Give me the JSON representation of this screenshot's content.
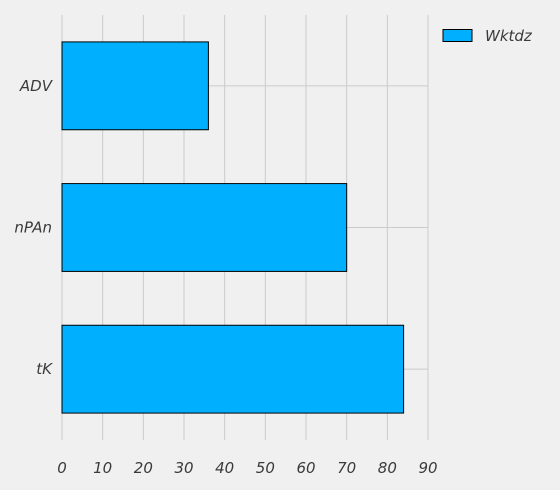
{
  "chart_data": {
    "type": "bar",
    "orientation": "horizontal",
    "categories": [
      "ADV",
      "nPAn",
      "tK"
    ],
    "series": [
      {
        "name": "Wktdz",
        "values": [
          36,
          70,
          84
        ],
        "color": "#00b0ff"
      }
    ],
    "xticks": [
      "0",
      "10",
      "20",
      "30",
      "40",
      "50",
      "60",
      "70",
      "80",
      "90"
    ],
    "xlim": [
      0,
      90
    ],
    "grid": true,
    "legend_position": "top-right",
    "background": "#f0f0f0",
    "grid_color": "#cbcbcb",
    "edge_color": "#000000"
  }
}
